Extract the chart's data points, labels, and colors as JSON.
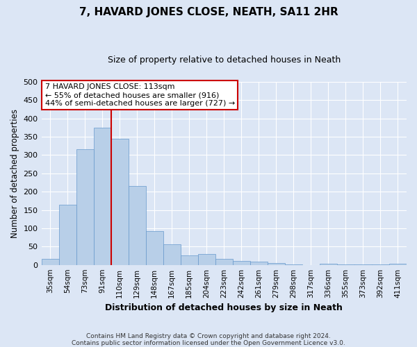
{
  "title": "7, HAVARD JONES CLOSE, NEATH, SA11 2HR",
  "subtitle": "Size of property relative to detached houses in Neath",
  "xlabel": "Distribution of detached houses by size in Neath",
  "ylabel": "Number of detached properties",
  "bar_color": "#b8cfe8",
  "bar_edge_color": "#6699cc",
  "bg_color": "#dce6f5",
  "grid_color": "#ffffff",
  "categories": [
    "35sqm",
    "54sqm",
    "73sqm",
    "91sqm",
    "110sqm",
    "129sqm",
    "148sqm",
    "167sqm",
    "185sqm",
    "204sqm",
    "223sqm",
    "242sqm",
    "261sqm",
    "279sqm",
    "298sqm",
    "317sqm",
    "336sqm",
    "355sqm",
    "373sqm",
    "392sqm",
    "411sqm"
  ],
  "values": [
    16,
    165,
    315,
    375,
    345,
    215,
    93,
    56,
    25,
    29,
    16,
    11,
    8,
    5,
    2,
    0,
    3,
    1,
    1,
    1,
    3
  ],
  "vline_color": "#cc0000",
  "annotation_text": "7 HAVARD JONES CLOSE: 113sqm\n← 55% of detached houses are smaller (916)\n44% of semi-detached houses are larger (727) →",
  "annotation_box_color": "#ffffff",
  "annotation_box_edge": "#cc0000",
  "ylim": [
    0,
    500
  ],
  "yticks": [
    0,
    50,
    100,
    150,
    200,
    250,
    300,
    350,
    400,
    450,
    500
  ],
  "footer_line1": "Contains HM Land Registry data © Crown copyright and database right 2024.",
  "footer_line2": "Contains public sector information licensed under the Open Government Licence v3.0."
}
